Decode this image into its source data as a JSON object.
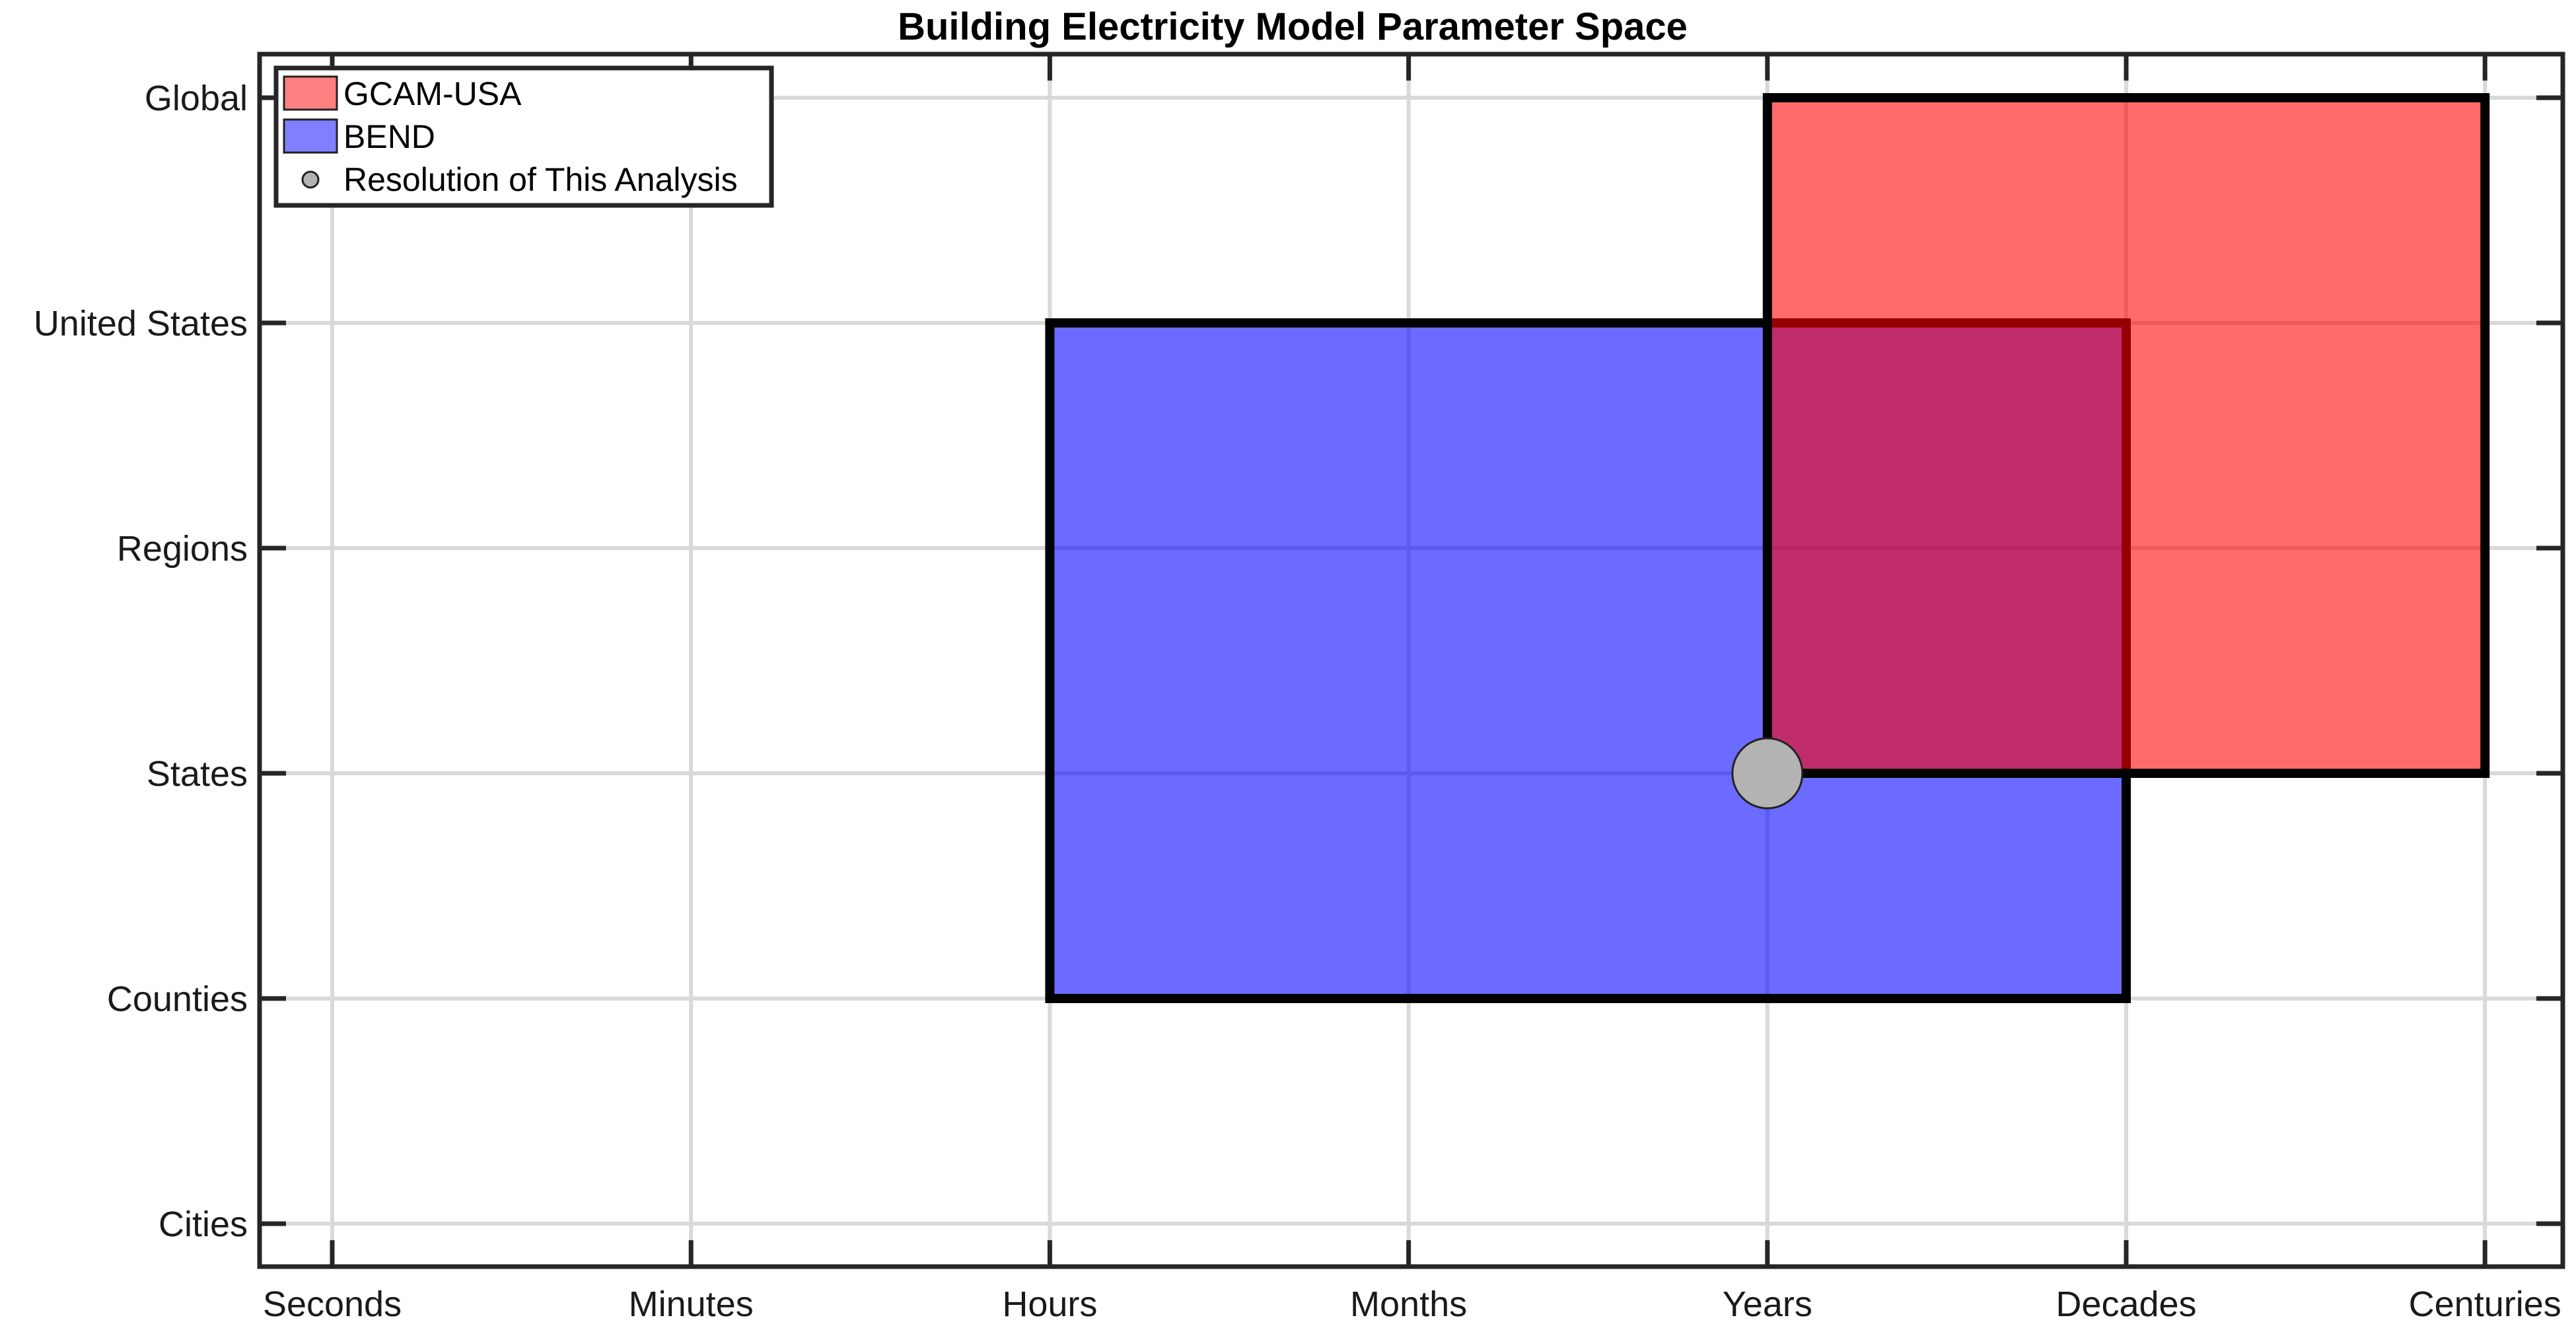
{
  "chart_data": {
    "type": "rectangle-range",
    "title": "Building Electricity Model Parameter Space",
    "xlabel": "",
    "ylabel": "",
    "x_categories": [
      "Seconds",
      "Minutes",
      "Hours",
      "Months",
      "Years",
      "Decades",
      "Centuries"
    ],
    "y_categories": [
      "Cities",
      "Counties",
      "States",
      "Regions",
      "United States",
      "Global"
    ],
    "grid": true,
    "legend_position": "top-left",
    "series": [
      {
        "name": "BEND",
        "color": "#0000ff",
        "opacity": 0.58,
        "x_range": [
          "Hours",
          "Decades"
        ],
        "y_range": [
          "Counties",
          "United States"
        ]
      },
      {
        "name": "GCAM-USA",
        "color": "#ff0000",
        "opacity": 0.58,
        "x_range": [
          "Years",
          "Centuries"
        ],
        "y_range": [
          "States",
          "Global"
        ]
      }
    ],
    "points": [
      {
        "name": "Resolution of This Analysis",
        "x": "Years",
        "y": "States",
        "color": "#b3b3b3"
      }
    ],
    "legend": [
      "GCAM-USA",
      "BEND",
      "Resolution of This Analysis"
    ]
  }
}
